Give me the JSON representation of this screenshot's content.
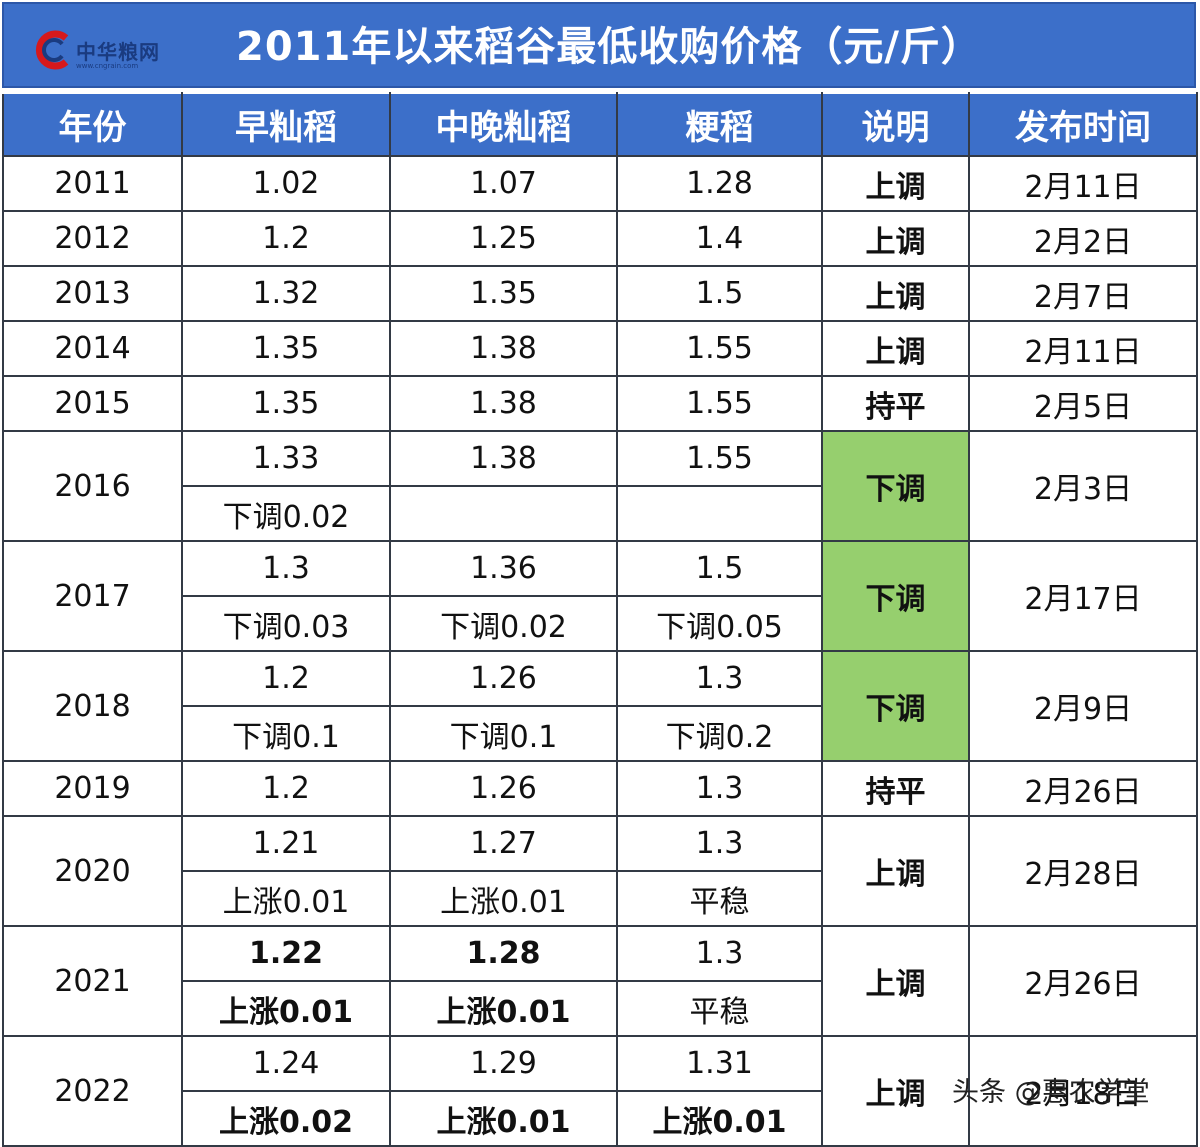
{
  "brand": {
    "name": "中华粮网",
    "url": "www.cngrain.com"
  },
  "title": "2011年以来稻谷最低收购价格（元/斤）",
  "columns": [
    "年份",
    "早籼稻",
    "中晚籼稻",
    "粳稻",
    "说明",
    "发布时间"
  ],
  "rows": [
    {
      "year": "2011",
      "early": "1.02",
      "mid": "1.07",
      "japonica": "1.28",
      "note": "上调",
      "date": "2月11日"
    },
    {
      "year": "2012",
      "early": "1.2",
      "mid": "1.25",
      "japonica": "1.4",
      "note": "上调",
      "date": "2月2日"
    },
    {
      "year": "2013",
      "early": "1.32",
      "mid": "1.35",
      "japonica": "1.5",
      "note": "上调",
      "date": "2月7日"
    },
    {
      "year": "2014",
      "early": "1.35",
      "mid": "1.38",
      "japonica": "1.55",
      "note": "上调",
      "date": "2月11日"
    },
    {
      "year": "2015",
      "early": "1.35",
      "mid": "1.38",
      "japonica": "1.55",
      "note": "持平",
      "date": "2月5日"
    },
    {
      "year": "2016",
      "early": "1.33",
      "mid": "1.38",
      "japonica": "1.55",
      "note": "下调",
      "date": "2月3日",
      "early_change": "下调0.02",
      "mid_change": "",
      "japonica_change": ""
    },
    {
      "year": "2017",
      "early": "1.3",
      "mid": "1.36",
      "japonica": "1.5",
      "note": "下调",
      "date": "2月17日",
      "early_change": "下调0.03",
      "mid_change": "下调0.02",
      "japonica_change": "下调0.05"
    },
    {
      "year": "2018",
      "early": "1.2",
      "mid": "1.26",
      "japonica": "1.3",
      "note": "下调",
      "date": "2月9日",
      "early_change": "下调0.1",
      "mid_change": "下调0.1",
      "japonica_change": "下调0.2"
    },
    {
      "year": "2019",
      "early": "1.2",
      "mid": "1.26",
      "japonica": "1.3",
      "note": "持平",
      "date": "2月26日"
    },
    {
      "year": "2020",
      "early": "1.21",
      "mid": "1.27",
      "japonica": "1.3",
      "note": "上调",
      "date": "2月28日",
      "early_change": "上涨0.01",
      "mid_change": "上涨0.01",
      "japonica_change": "平稳"
    },
    {
      "year": "2021",
      "early": "1.22",
      "mid": "1.28",
      "japonica": "1.3",
      "note": "上调",
      "date": "2月26日",
      "early_change": "上涨0.01",
      "mid_change": "上涨0.01",
      "japonica_change": "平稳"
    },
    {
      "year": "2022",
      "early": "1.24",
      "mid": "1.29",
      "japonica": "1.31",
      "note": "上调",
      "date": "2月18日",
      "early_change": "上涨0.02",
      "mid_change": "上涨0.01",
      "japonica_change": "上涨0.01"
    }
  ],
  "watermark": "头条 @惠农学堂",
  "colors": {
    "header_blue": "#3c6fc9",
    "up_red": "#e02020",
    "down_green": "#96cf6e"
  }
}
